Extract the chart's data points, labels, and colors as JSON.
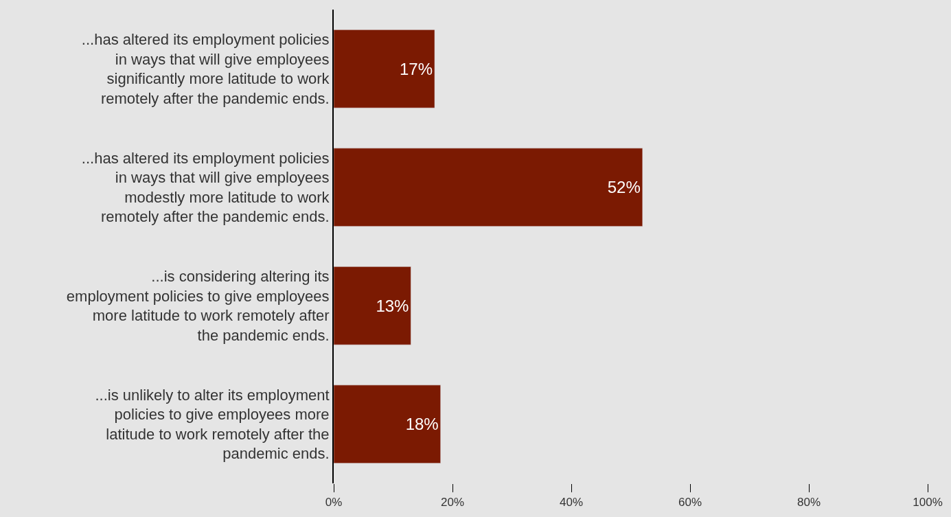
{
  "chart_data": {
    "type": "bar",
    "orientation": "horizontal",
    "categories": [
      "...has altered its employment policies in ways that will give employees significantly more latitude to work remotely after the pandemic ends.",
      "...has altered its employment policies in ways that will give employees modestly more latitude to work remotely after the pandemic ends.",
      "...is considering altering its employment policies to give employees more latitude to work remotely after the pandemic ends.",
      "...is unlikely to alter its employment policies to give employees more latitude to work remotely after the pandemic ends."
    ],
    "values": [
      17,
      52,
      13,
      18
    ],
    "value_labels": [
      "17%",
      "52%",
      "13%",
      "18%"
    ],
    "color": "#7b1a02",
    "xlim": [
      0,
      100
    ],
    "xticks": [
      {
        "value": 0,
        "label": "0%"
      },
      {
        "value": 20,
        "label": "20%"
      },
      {
        "value": 40,
        "label": "40%"
      },
      {
        "value": 60,
        "label": "60%"
      },
      {
        "value": 80,
        "label": "80%"
      },
      {
        "value": 100,
        "label": "100%"
      }
    ]
  }
}
